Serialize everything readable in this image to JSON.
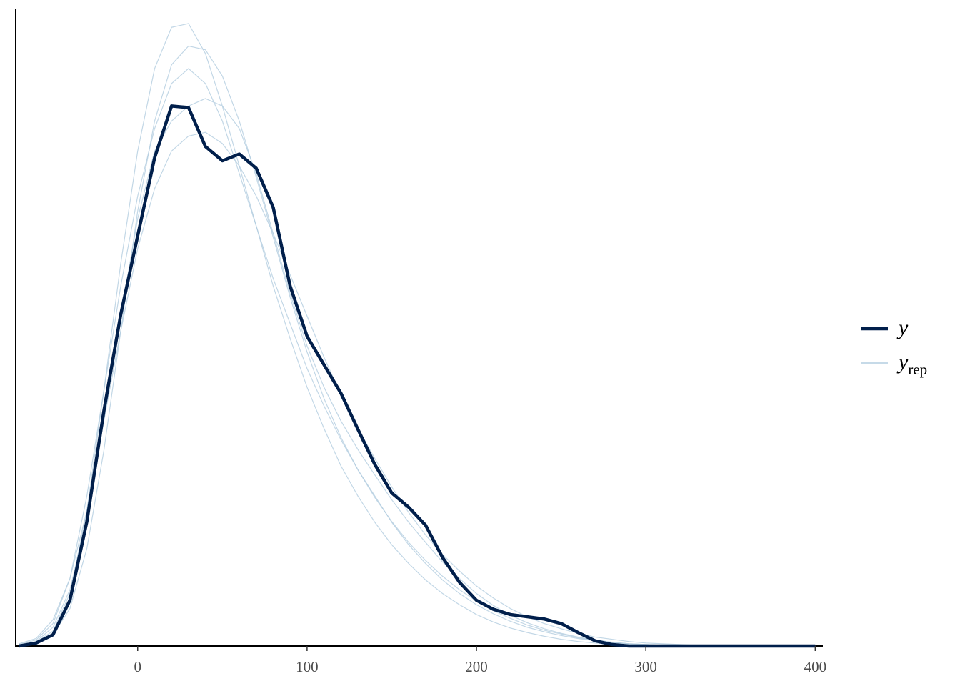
{
  "chart_data": {
    "type": "line",
    "x": [
      -70,
      -60,
      -50,
      -40,
      -30,
      -20,
      -10,
      0,
      10,
      20,
      30,
      40,
      50,
      60,
      70,
      80,
      90,
      100,
      110,
      120,
      130,
      140,
      150,
      160,
      170,
      180,
      190,
      200,
      210,
      220,
      230,
      240,
      250,
      260,
      270,
      280,
      290,
      300,
      310,
      320,
      330,
      340,
      350,
      360,
      370,
      380,
      390,
      400
    ],
    "xlim": [
      -72,
      404.5
    ],
    "xticks": [
      0,
      100,
      200,
      300,
      400
    ],
    "ylim": [
      0,
      0.0085
    ],
    "grid": false,
    "legend_entries": [
      {
        "text": "y",
        "color": "#011f4b"
      },
      {
        "text": "y",
        "subscript": "rep",
        "color": "#b3cde0"
      }
    ],
    "series": [
      {
        "name": "y",
        "color": "#011f4b",
        "values": [
          0,
          4e-05,
          0.00015,
          0.00061,
          0.00166,
          0.00313,
          0.00442,
          0.00547,
          0.00651,
          0.0072,
          0.00718,
          0.00666,
          0.00647,
          0.00656,
          0.00637,
          0.00585,
          0.0048,
          0.00413,
          0.00375,
          0.00337,
          0.00289,
          0.00242,
          0.00204,
          0.00185,
          0.00161,
          0.00118,
          0.00085,
          0.00061,
          0.00049,
          0.00042,
          0.00039,
          0.00036,
          0.0003,
          0.00018,
          7e-05,
          2e-05,
          0,
          0,
          0,
          0,
          0,
          0,
          0,
          0,
          0,
          0,
          0,
          0
        ]
      },
      {
        "color": "#b3cde0",
        "values": [
          2e-05,
          8e-05,
          0.0003,
          0.0009,
          0.002,
          0.0034,
          0.0048,
          0.006,
          0.0069,
          0.0075,
          0.0077,
          0.0075,
          0.007,
          0.0063,
          0.0056,
          0.0049,
          0.0043,
          0.0037,
          0.0032,
          0.00275,
          0.00235,
          0.002,
          0.00165,
          0.00135,
          0.0011,
          0.00088,
          0.0007,
          0.00055,
          0.00043,
          0.00033,
          0.00025,
          0.00019,
          0.00014,
          0.0001,
          7e-05,
          5e-05,
          3e-05,
          2e-05,
          1e-05,
          0,
          0,
          0,
          0,
          0,
          0,
          0,
          0,
          0
        ]
      },
      {
        "color": "#b3cde0",
        "values": [
          0,
          5e-05,
          0.0002,
          0.0007,
          0.0018,
          0.0034,
          0.0051,
          0.0066,
          0.0077,
          0.00825,
          0.0083,
          0.0079,
          0.0072,
          0.0064,
          0.0056,
          0.0048,
          0.0041,
          0.00345,
          0.0029,
          0.0024,
          0.002,
          0.00165,
          0.00135,
          0.0011,
          0.00088,
          0.0007,
          0.00055,
          0.00042,
          0.00032,
          0.00024,
          0.00018,
          0.00013,
          9e-05,
          6e-05,
          4e-05,
          2e-05,
          1e-05,
          0,
          0,
          0,
          0,
          0,
          0,
          0,
          0,
          0,
          0,
          0
        ]
      },
      {
        "color": "#b3cde0",
        "values": [
          3e-05,
          0.0001,
          0.00035,
          0.0009,
          0.0018,
          0.003,
          0.0042,
          0.0053,
          0.0061,
          0.0066,
          0.0068,
          0.00685,
          0.0067,
          0.0064,
          0.006,
          0.0055,
          0.00495,
          0.0044,
          0.00385,
          0.00335,
          0.0029,
          0.0025,
          0.00212,
          0.00178,
          0.00148,
          0.00122,
          0.001,
          0.0008,
          0.00064,
          0.0005,
          0.00039,
          0.0003,
          0.00023,
          0.00017,
          0.00012,
          9e-05,
          6e-05,
          4e-05,
          3e-05,
          2e-05,
          1e-05,
          0,
          0,
          0,
          0,
          0,
          0,
          0
        ]
      },
      {
        "color": "#b3cde0",
        "values": [
          1e-05,
          6e-05,
          0.00025,
          0.00075,
          0.0017,
          0.003,
          0.0044,
          0.0057,
          0.0066,
          0.007,
          0.0072,
          0.0073,
          0.0072,
          0.0069,
          0.0063,
          0.0055,
          0.0047,
          0.004,
          0.00345,
          0.003,
          0.00262,
          0.00228,
          0.00195,
          0.00165,
          0.00138,
          0.00112,
          0.0009,
          0.0007,
          0.00054,
          0.00041,
          0.00031,
          0.00023,
          0.00017,
          0.00012,
          8e-05,
          5e-05,
          3e-05,
          2e-05,
          1e-05,
          0,
          0,
          0,
          0,
          0,
          0,
          0,
          0,
          0
        ]
      },
      {
        "color": "#b3cde0",
        "values": [
          1e-05,
          4e-05,
          0.00015,
          0.0005,
          0.0013,
          0.0026,
          0.0042,
          0.0058,
          0.007,
          0.00775,
          0.008,
          0.00795,
          0.0076,
          0.007,
          0.00625,
          0.00545,
          0.00465,
          0.00392,
          0.0033,
          0.00278,
          0.00235,
          0.00198,
          0.00166,
          0.00138,
          0.00114,
          0.00093,
          0.00075,
          0.0006,
          0.00047,
          0.00037,
          0.00028,
          0.00021,
          0.00016,
          0.00011,
          8e-05,
          5e-05,
          3e-05,
          2e-05,
          1e-05,
          0,
          0,
          0,
          0,
          0,
          0,
          0,
          0,
          0
        ]
      }
    ]
  }
}
